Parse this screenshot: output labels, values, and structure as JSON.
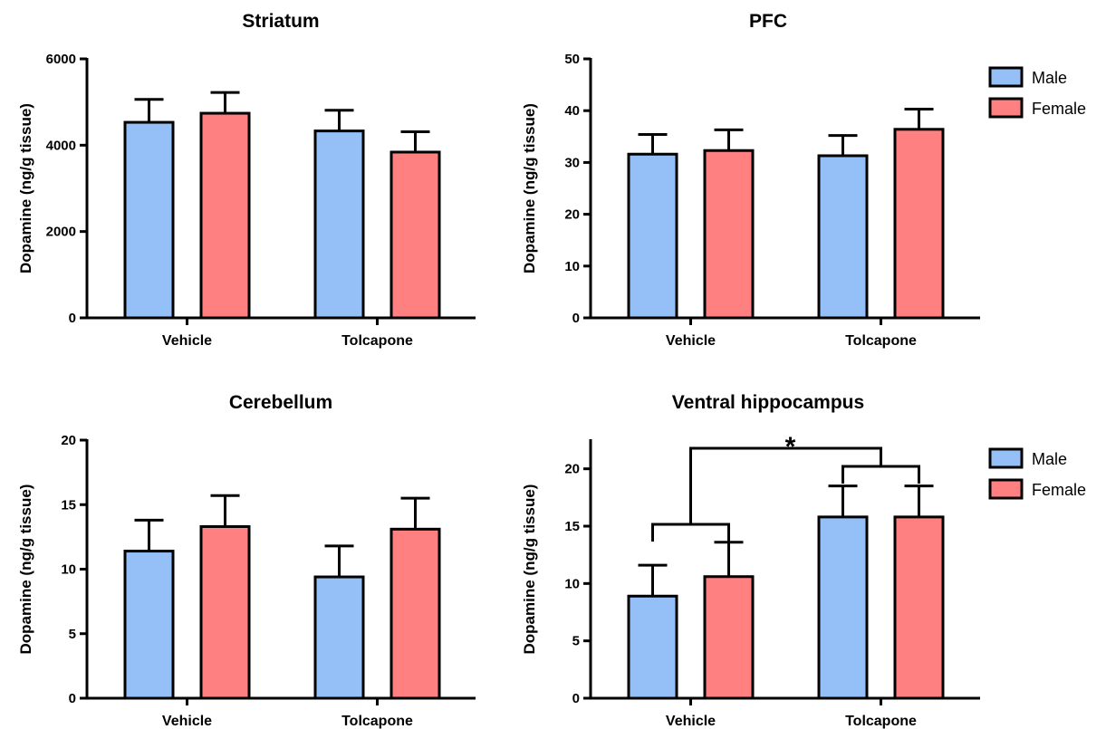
{
  "colors": {
    "male": "#94bff7",
    "female": "#ff8080"
  },
  "legend": [
    {
      "label": "Male",
      "color": "#94bff7"
    },
    {
      "label": "Female",
      "color": "#ff8080"
    }
  ],
  "chart_data": [
    {
      "type": "bar",
      "title": "Striatum",
      "ylabel": "Dopamine (ng/g tissue)",
      "categories": [
        "Vehicle",
        "Tolcapone"
      ],
      "ylim": [
        0,
        6000
      ],
      "yticks": [
        0,
        2000,
        4000,
        6000
      ],
      "series": [
        {
          "name": "Male",
          "values": [
            4530,
            4330
          ],
          "errors": [
            530,
            480
          ]
        },
        {
          "name": "Female",
          "values": [
            4740,
            3840
          ],
          "errors": [
            480,
            470
          ]
        }
      ],
      "legend": false
    },
    {
      "type": "bar",
      "title": "PFC",
      "ylabel": "Dopamine (ng/g tissue)",
      "categories": [
        "Vehicle",
        "Tolcapone"
      ],
      "ylim": [
        0,
        50
      ],
      "yticks": [
        0,
        10,
        20,
        30,
        40,
        50
      ],
      "series": [
        {
          "name": "Male",
          "values": [
            31.6,
            31.3
          ],
          "errors": [
            3.8,
            3.9
          ]
        },
        {
          "name": "Female",
          "values": [
            32.3,
            36.4
          ],
          "errors": [
            4.0,
            3.9
          ]
        }
      ],
      "legend": true
    },
    {
      "type": "bar",
      "title": "Cerebellum",
      "ylabel": "Dopamine (ng/g tissue)",
      "categories": [
        "Vehicle",
        "Tolcapone"
      ],
      "ylim": [
        0,
        20
      ],
      "yticks": [
        0,
        5,
        10,
        15,
        20
      ],
      "series": [
        {
          "name": "Male",
          "values": [
            11.4,
            9.4
          ],
          "errors": [
            2.4,
            2.4
          ]
        },
        {
          "name": "Female",
          "values": [
            13.3,
            13.1
          ],
          "errors": [
            2.4,
            2.4
          ]
        }
      ],
      "legend": false
    },
    {
      "type": "bar",
      "title": "Ventral hippocampus",
      "ylabel": "Dopamine (ng/g tissue)",
      "categories": [
        "Vehicle",
        "Tolcapone"
      ],
      "ylim": [
        0,
        22.5
      ],
      "yticks": [
        0,
        5,
        10,
        15,
        20
      ],
      "series": [
        {
          "name": "Male",
          "values": [
            8.9,
            15.8
          ],
          "errors": [
            2.7,
            2.7
          ]
        },
        {
          "name": "Female",
          "values": [
            10.6,
            15.8
          ],
          "errors": [
            3.0,
            2.7
          ]
        }
      ],
      "legend": true,
      "annotation": {
        "text": "*",
        "type": "significance-bracket"
      }
    }
  ]
}
